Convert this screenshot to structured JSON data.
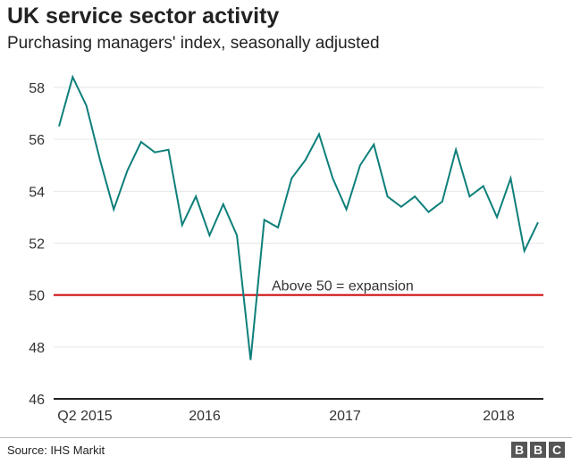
{
  "title": "UK service sector activity",
  "subtitle": "Purchasing managers' index, seasonally adjusted",
  "source": "Source: IHS Markit",
  "logo": "BBC",
  "chart_data": {
    "type": "line",
    "ylim": [
      46,
      58.5
    ],
    "yticks": [
      46,
      48,
      50,
      52,
      54,
      56,
      58
    ],
    "grid": true,
    "x": [
      "2015-05",
      "2015-06",
      "2015-07",
      "2015-08",
      "2015-09",
      "2015-10",
      "2015-11",
      "2015-12",
      "2016-01",
      "2016-02",
      "2016-03",
      "2016-04",
      "2016-05",
      "2016-06",
      "2016-07",
      "2016-08",
      "2016-09",
      "2016-10",
      "2016-11",
      "2016-12",
      "2017-01",
      "2017-02",
      "2017-03",
      "2017-04",
      "2017-05",
      "2017-06",
      "2017-07",
      "2017-08",
      "2017-09",
      "2017-10",
      "2017-11",
      "2017-12",
      "2018-01",
      "2018-02",
      "2018-03",
      "2018-04"
    ],
    "values": [
      56.5,
      58.4,
      57.3,
      55.2,
      53.3,
      54.8,
      55.9,
      55.5,
      55.6,
      52.7,
      53.8,
      52.3,
      53.5,
      52.3,
      47.5,
      52.9,
      52.6,
      54.5,
      55.2,
      56.2,
      54.5,
      53.3,
      55.0,
      55.8,
      53.8,
      53.4,
      53.8,
      53.2,
      53.6,
      55.6,
      53.8,
      54.2,
      53.0,
      54.5,
      51.7,
      52.8
    ],
    "xtick_labels": [
      "Q2 2015",
      "2016",
      "2017",
      "2018"
    ],
    "reference_line": {
      "value": 50,
      "label": "Above 50 = expansion",
      "color": "#cc0000"
    },
    "line_color": "#0e7f7a"
  }
}
